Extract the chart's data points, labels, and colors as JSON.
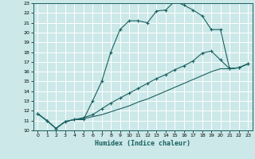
{
  "bg_color": "#cce8e8",
  "grid_color": "#b0d4d4",
  "line_color": "#1a6060",
  "xlabel": "Humidex (Indice chaleur)",
  "xlim": [
    -0.5,
    23.5
  ],
  "ylim": [
    10,
    23
  ],
  "xticks": [
    0,
    1,
    2,
    3,
    4,
    5,
    6,
    7,
    8,
    9,
    10,
    11,
    12,
    13,
    14,
    15,
    16,
    17,
    18,
    19,
    20,
    21,
    22,
    23
  ],
  "yticks": [
    10,
    11,
    12,
    13,
    14,
    15,
    16,
    17,
    18,
    19,
    20,
    21,
    22,
    23
  ],
  "curve1_x": [
    0,
    1,
    2,
    3,
    4,
    5,
    6,
    7,
    8,
    9,
    10,
    11,
    12,
    13,
    14,
    15,
    16,
    17,
    18,
    19,
    20,
    21,
    22,
    23
  ],
  "curve1_y": [
    11.7,
    11.0,
    10.2,
    10.9,
    11.1,
    11.1,
    13.0,
    15.0,
    18.0,
    20.3,
    21.2,
    21.2,
    21.0,
    22.2,
    22.3,
    23.2,
    22.8,
    22.3,
    21.7,
    20.3,
    20.3,
    16.3,
    16.4,
    16.8
  ],
  "curve2_x": [
    0,
    1,
    2,
    3,
    4,
    5,
    6,
    7,
    8,
    9,
    10,
    11,
    12,
    13,
    14,
    15,
    16,
    17,
    18,
    19,
    20,
    21,
    22,
    23
  ],
  "curve2_y": [
    11.7,
    11.0,
    10.2,
    10.9,
    11.1,
    11.3,
    11.6,
    12.2,
    12.8,
    13.3,
    13.8,
    14.3,
    14.8,
    15.3,
    15.7,
    16.2,
    16.6,
    17.1,
    17.9,
    18.1,
    17.2,
    16.3,
    16.4,
    16.8
  ],
  "curve3_x": [
    0,
    1,
    2,
    3,
    4,
    5,
    6,
    7,
    8,
    9,
    10,
    11,
    12,
    13,
    14,
    15,
    16,
    17,
    18,
    19,
    20,
    21,
    22,
    23
  ],
  "curve3_y": [
    11.7,
    11.0,
    10.2,
    10.9,
    11.1,
    11.2,
    11.4,
    11.6,
    11.9,
    12.2,
    12.5,
    12.9,
    13.2,
    13.6,
    14.0,
    14.4,
    14.8,
    15.2,
    15.6,
    16.0,
    16.3,
    16.3,
    16.4,
    16.8
  ]
}
